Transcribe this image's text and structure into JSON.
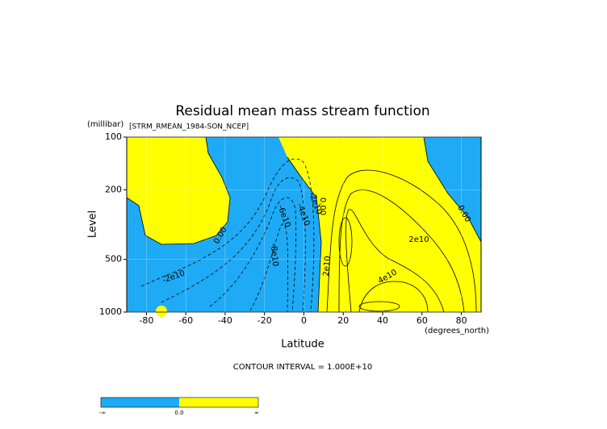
{
  "chart_data": {
    "type": "contour",
    "title": "Residual mean mass stream function",
    "subtitle": "[STRM_RMEAN_1984-SON_NCEP]",
    "y_unit": "(millibar)",
    "y_label": "Level",
    "x_label": "Latitude",
    "x_unit": "(degrees_north)",
    "xlim": [
      -90,
      90
    ],
    "xticks": [
      -80,
      -60,
      -40,
      -20,
      0,
      20,
      40,
      60,
      80
    ],
    "ylim": [
      1000,
      100
    ],
    "yticks": [
      100,
      200,
      500,
      1000
    ],
    "y_log": true,
    "contour_labels": [
      "0.00",
      "-2e10",
      "-6e10",
      "-4e10",
      "-2e10",
      "-8e10",
      "0.00",
      "2e10",
      "4e10",
      "2e10",
      "0.00"
    ],
    "contour_interval": "CONTOUR INTERVAL = 1.000E+10",
    "colorbar": {
      "labels": [
        "-∞",
        "0.0",
        "∞"
      ],
      "colors": [
        "#1eaaf5",
        "#ffff00"
      ]
    }
  }
}
